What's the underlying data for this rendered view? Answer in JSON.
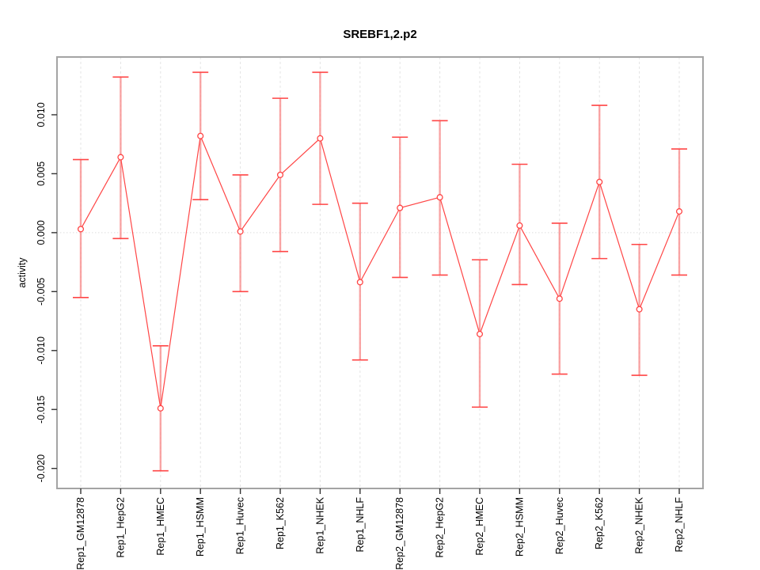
{
  "title": "SREBF1,2.p2",
  "chart_data": {
    "type": "line",
    "title": "SREBF1,2.p2",
    "xlabel": "",
    "ylabel": "activity",
    "categories": [
      "Rep1_GM12878",
      "Rep1_HepG2",
      "Rep1_HMEC",
      "Rep1_HSMM",
      "Rep1_Huvec",
      "Rep1_K562",
      "Rep1_NHEK",
      "Rep1_NHLF",
      "Rep2_GM12878",
      "Rep2_HepG2",
      "Rep2_HMEC",
      "Rep2_HSMM",
      "Rep2_Huvec",
      "Rep2_K562",
      "Rep2_NHEK",
      "Rep2_NHLF"
    ],
    "series": [
      {
        "name": "activity",
        "values": [
          0.0003,
          0.0064,
          -0.0149,
          0.0082,
          0.0001,
          0.0049,
          0.008,
          -0.0042,
          0.0021,
          0.003,
          -0.0086,
          0.0006,
          -0.0056,
          0.0043,
          -0.0065,
          0.0018
        ],
        "error_low": [
          -0.0055,
          -0.0005,
          -0.0202,
          0.0028,
          -0.005,
          -0.0016,
          0.0024,
          -0.0108,
          -0.0038,
          -0.0036,
          -0.0148,
          -0.0044,
          -0.012,
          -0.0022,
          -0.0121,
          -0.0036
        ],
        "error_high": [
          0.0062,
          0.0132,
          -0.0096,
          0.0136,
          0.0049,
          0.0114,
          0.0136,
          0.0025,
          0.0081,
          0.0095,
          -0.0023,
          0.0058,
          0.0008,
          0.0108,
          -0.001,
          0.0071
        ]
      }
    ],
    "ylim": [
      -0.0217,
      0.0149
    ],
    "yticks": [
      0.01,
      0.005,
      0.0,
      -0.005,
      -0.01,
      -0.015,
      -0.02
    ],
    "ytick_labels": [
      "0.010",
      "0.005",
      "0.000",
      "-0.005",
      "-0.010",
      "-0.015",
      "-0.020"
    ],
    "grid": "vertical dashed line at every category; dotted horizontal line at y=0",
    "legend_position": "none",
    "colors": {
      "series": "#ff4545",
      "whisker_shaft": "#f98f8f",
      "gridline": "#e4e4e4",
      "zero_line": "#dedede",
      "plot_border": "#a4a4a4",
      "tick": "#333333",
      "text": "#000000",
      "marker_fill": "#ffffff"
    }
  }
}
